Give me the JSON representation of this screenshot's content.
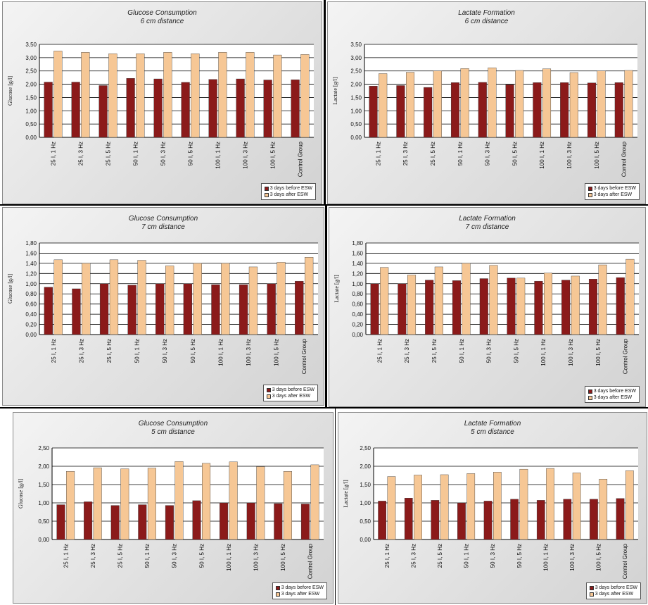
{
  "legend": {
    "before": "3 days before ESW",
    "after": "3 days after ESW"
  },
  "colors": {
    "before": "#8b1a1a",
    "after": "#f6c795"
  },
  "chart_data": [
    {
      "type": "bar",
      "title": "Glucose Consumption",
      "subtitle": "6 cm distance",
      "ylabel": "Glucose [g/l]",
      "ylim": [
        0,
        3.5
      ],
      "yticks": [
        "0,00",
        "0,50",
        "1,00",
        "1,50",
        "2,00",
        "2,50",
        "3,00",
        "3,50"
      ],
      "categories": [
        "25 I, 1 Hz",
        "25 I, 3 Hz",
        "25 I, 5 Hz",
        "50 I, 1 Hz",
        "50 I, 3 Hz",
        "50 I, 5 Hz",
        "100 I, 1 Hz",
        "100 I, 3 Hz",
        "100 I, 5 Hz",
        "Control Group"
      ],
      "series": [
        {
          "name": "3 days before ESW",
          "values": [
            2.08,
            2.08,
            1.95,
            2.22,
            2.2,
            2.07,
            2.18,
            2.2,
            2.16,
            2.17
          ]
        },
        {
          "name": "3 days after ESW",
          "values": [
            3.25,
            3.2,
            3.15,
            3.15,
            3.2,
            3.15,
            3.2,
            3.2,
            3.1,
            3.12
          ]
        }
      ],
      "grid": true,
      "legend_position": "bottom-right"
    },
    {
      "type": "bar",
      "title": "Lactate Formation",
      "subtitle": "6 cm distance",
      "ylabel": "Lactate [g/l]",
      "ylim": [
        0,
        3.5
      ],
      "yticks": [
        "0,00",
        "0,50",
        "1,00",
        "1,50",
        "2,00",
        "2,50",
        "3,00",
        "3,50"
      ],
      "categories": [
        "25 I, 1 Hz",
        "25 I, 3 Hz",
        "25 I, 5 Hz",
        "50 I, 1 Hz",
        "50 I, 3 Hz",
        "50 I, 5 Hz",
        "100 I, 1 Hz",
        "100 I, 3 Hz",
        "100 I, 5 Hz",
        "Control Group"
      ],
      "series": [
        {
          "name": "3 days before ESW",
          "values": [
            1.93,
            1.95,
            1.88,
            2.06,
            2.07,
            1.98,
            2.06,
            2.06,
            2.05,
            2.06
          ]
        },
        {
          "name": "3 days after ESW",
          "values": [
            2.4,
            2.45,
            2.5,
            2.59,
            2.62,
            2.52,
            2.58,
            2.44,
            2.5,
            2.52
          ]
        }
      ],
      "grid": true,
      "legend_position": "bottom-right"
    },
    {
      "type": "bar",
      "title": "Glucose Consumption",
      "subtitle": "7 cm distance",
      "ylabel": "Glucose [g/l]",
      "ylim": [
        0,
        1.8
      ],
      "yticks": [
        "0,00",
        "0,20",
        "0,40",
        "0,60",
        "0,80",
        "1,00",
        "1,20",
        "1,40",
        "1,60",
        "1,80"
      ],
      "categories": [
        "25 I, 1 Hz",
        "25 I, 3 Hz",
        "25 I, 5 Hz",
        "50 I, 1 Hz",
        "50 I, 3 Hz",
        "50 I, 5 Hz",
        "100 I, 1 Hz",
        "100 I, 3 Hz",
        "100 I, 5 Hz",
        "Control Group"
      ],
      "series": [
        {
          "name": "3 days before ESW",
          "values": [
            0.93,
            0.9,
            1.0,
            0.97,
            1.0,
            1.0,
            0.98,
            0.98,
            1.0,
            1.05
          ]
        },
        {
          "name": "3 days after ESW",
          "values": [
            1.47,
            1.4,
            1.47,
            1.46,
            1.35,
            1.4,
            1.4,
            1.33,
            1.42,
            1.52
          ]
        }
      ],
      "grid": true,
      "legend_position": "bottom-right"
    },
    {
      "type": "bar",
      "title": "Lactate Formation",
      "subtitle": "7 cm distance",
      "ylabel": "Lactate [g/l]",
      "ylim": [
        0,
        1.8
      ],
      "yticks": [
        "0,00",
        "0,20",
        "0,40",
        "0,60",
        "0,80",
        "1,00",
        "1,20",
        "1,40",
        "1,60",
        "1,80"
      ],
      "categories": [
        "25 I, 1 Hz",
        "25 I, 3 Hz",
        "25 I, 5 Hz",
        "50 I, 1 Hz",
        "50 I, 3 Hz",
        "50 I, 5 Hz",
        "100 I, 1 Hz",
        "100 I, 3 Hz",
        "100 I, 5 Hz",
        "Control Group"
      ],
      "series": [
        {
          "name": "3 days before ESW",
          "values": [
            1.0,
            1.0,
            1.07,
            1.06,
            1.1,
            1.11,
            1.05,
            1.07,
            1.09,
            1.12
          ]
        },
        {
          "name": "3 days after ESW",
          "values": [
            1.32,
            1.17,
            1.33,
            1.4,
            1.36,
            1.11,
            1.21,
            1.15,
            1.37,
            1.48
          ]
        }
      ],
      "grid": true,
      "legend_position": "bottom-right"
    },
    {
      "type": "bar",
      "title": "Glucose Consumption",
      "subtitle": "5 cm distance",
      "ylabel": "Glucose [g/l]",
      "ylim": [
        0,
        2.5
      ],
      "yticks": [
        "0,00",
        "0,50",
        "1,00",
        "1,50",
        "2,00",
        "2,50"
      ],
      "categories": [
        "25 I, 1 Hz",
        "25 I, 3 Hz",
        "25 I, 5 Hz",
        "50 I, 1 Hz",
        "50 I, 3 Hz",
        "50 I, 5 Hz",
        "100 I, 1 Hz",
        "100 I, 3 Hz",
        "100 I, 5 Hz",
        "Control Group"
      ],
      "series": [
        {
          "name": "3 days before ESW",
          "values": [
            0.95,
            1.03,
            0.93,
            0.95,
            0.93,
            1.06,
            1.0,
            1.0,
            0.98,
            0.97
          ]
        },
        {
          "name": "3 days after ESW",
          "values": [
            1.86,
            1.96,
            1.93,
            1.95,
            2.13,
            2.08,
            2.12,
            1.99,
            1.86,
            2.04
          ]
        }
      ],
      "grid": true,
      "legend_position": "bottom-right"
    },
    {
      "type": "bar",
      "title": "Lactate Formation",
      "subtitle": "5 cm distance",
      "ylabel": "Lactate [g/l]",
      "ylim": [
        0,
        2.5
      ],
      "yticks": [
        "0,00",
        "0,50",
        "1,00",
        "1,50",
        "2,00",
        "2,50"
      ],
      "categories": [
        "25 I, 1 Hz",
        "25 I, 3 Hz",
        "25 I, 5 Hz",
        "50 I, 1 Hz",
        "50 I, 3 Hz",
        "50 I, 5 Hz",
        "100 I, 1 Hz",
        "100 I, 3 Hz",
        "100 I, 5 Hz",
        "Control Group"
      ],
      "series": [
        {
          "name": "3 days before ESW",
          "values": [
            1.05,
            1.13,
            1.07,
            1.0,
            1.05,
            1.1,
            1.07,
            1.1,
            1.1,
            1.12
          ]
        },
        {
          "name": "3 days after ESW",
          "values": [
            1.72,
            1.76,
            1.77,
            1.8,
            1.84,
            1.92,
            1.94,
            1.82,
            1.65,
            1.88
          ]
        }
      ],
      "grid": true,
      "legend_position": "bottom-right"
    }
  ]
}
